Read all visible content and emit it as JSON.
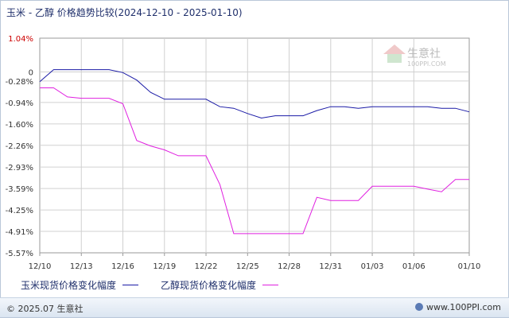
{
  "title": "玉米 - 乙醇 价格趋势比较(2024-12-10 - 2025-01-10)",
  "watermark": {
    "name": "生意社",
    "url": "100PPI.COM"
  },
  "footer": {
    "copyright": "© 2025.07 生意社",
    "site": "www.100PPI.com"
  },
  "colors": {
    "corn": "#1a1aa6",
    "ethanol": "#e020e0",
    "top_label": "#cc0000",
    "grid": "#d0d0d0"
  },
  "chart_data": {
    "type": "line",
    "x": [
      "12/10",
      "12/11",
      "12/12",
      "12/13",
      "12/14",
      "12/15",
      "12/16",
      "12/17",
      "12/18",
      "12/19",
      "12/20",
      "12/21",
      "12/22",
      "12/23",
      "12/24",
      "12/25",
      "12/26",
      "12/27",
      "12/28",
      "12/29",
      "12/30",
      "12/31",
      "01/01",
      "01/02",
      "01/03",
      "01/04",
      "01/05",
      "01/06",
      "01/07",
      "01/08",
      "01/09",
      "01/10"
    ],
    "xticks": [
      "12/10",
      "12/13",
      "12/16",
      "12/19",
      "12/22",
      "12/25",
      "12/28",
      "12/31",
      "01/03",
      "01/06",
      "01/10"
    ],
    "ylim": [
      -5.57,
      1.04
    ],
    "yticks": [
      {
        "value": 1.04,
        "label": "1.04%",
        "highlight": true
      },
      {
        "value": 0,
        "label": "0",
        "highlight": false
      },
      {
        "value": -0.28,
        "label": "-0.28%",
        "highlight": false
      },
      {
        "value": -0.94,
        "label": "-0.94%",
        "highlight": false
      },
      {
        "value": -1.6,
        "label": "-1.60%",
        "highlight": false
      },
      {
        "value": -2.26,
        "label": "-2.26%",
        "highlight": false
      },
      {
        "value": -2.93,
        "label": "-2.93%",
        "highlight": false
      },
      {
        "value": -3.59,
        "label": "-3.59%",
        "highlight": false
      },
      {
        "value": -4.25,
        "label": "-4.25%",
        "highlight": false
      },
      {
        "value": -4.91,
        "label": "-4.91%",
        "highlight": false
      },
      {
        "value": -5.57,
        "label": "-5.57%",
        "highlight": false
      }
    ],
    "grid": true,
    "legend_position": "bottom",
    "series": [
      {
        "name": "玉米现货价格变化幅度",
        "values": [
          -0.3,
          0.07,
          0.07,
          0.07,
          0.07,
          0.07,
          -0.02,
          -0.25,
          -0.63,
          -0.84,
          -0.84,
          -0.84,
          -0.84,
          -1.07,
          -1.12,
          -1.28,
          -1.42,
          -1.35,
          -1.35,
          -1.35,
          -1.19,
          -1.07,
          -1.07,
          -1.12,
          -1.07,
          -1.07,
          -1.07,
          -1.07,
          -1.07,
          -1.12,
          -1.12,
          -1.23
        ]
      },
      {
        "name": "乙醇现货价格变化幅度",
        "values": [
          -0.49,
          -0.49,
          -0.77,
          -0.81,
          -0.81,
          -0.81,
          -0.98,
          -2.11,
          -2.28,
          -2.4,
          -2.58,
          -2.58,
          -2.58,
          -3.47,
          -4.98,
          -4.98,
          -4.98,
          -4.98,
          -4.98,
          -4.98,
          -3.86,
          -3.96,
          -3.96,
          -3.96,
          -3.52,
          -3.52,
          -3.52,
          -3.52,
          -3.61,
          -3.69,
          -3.31,
          -3.31
        ]
      }
    ]
  }
}
